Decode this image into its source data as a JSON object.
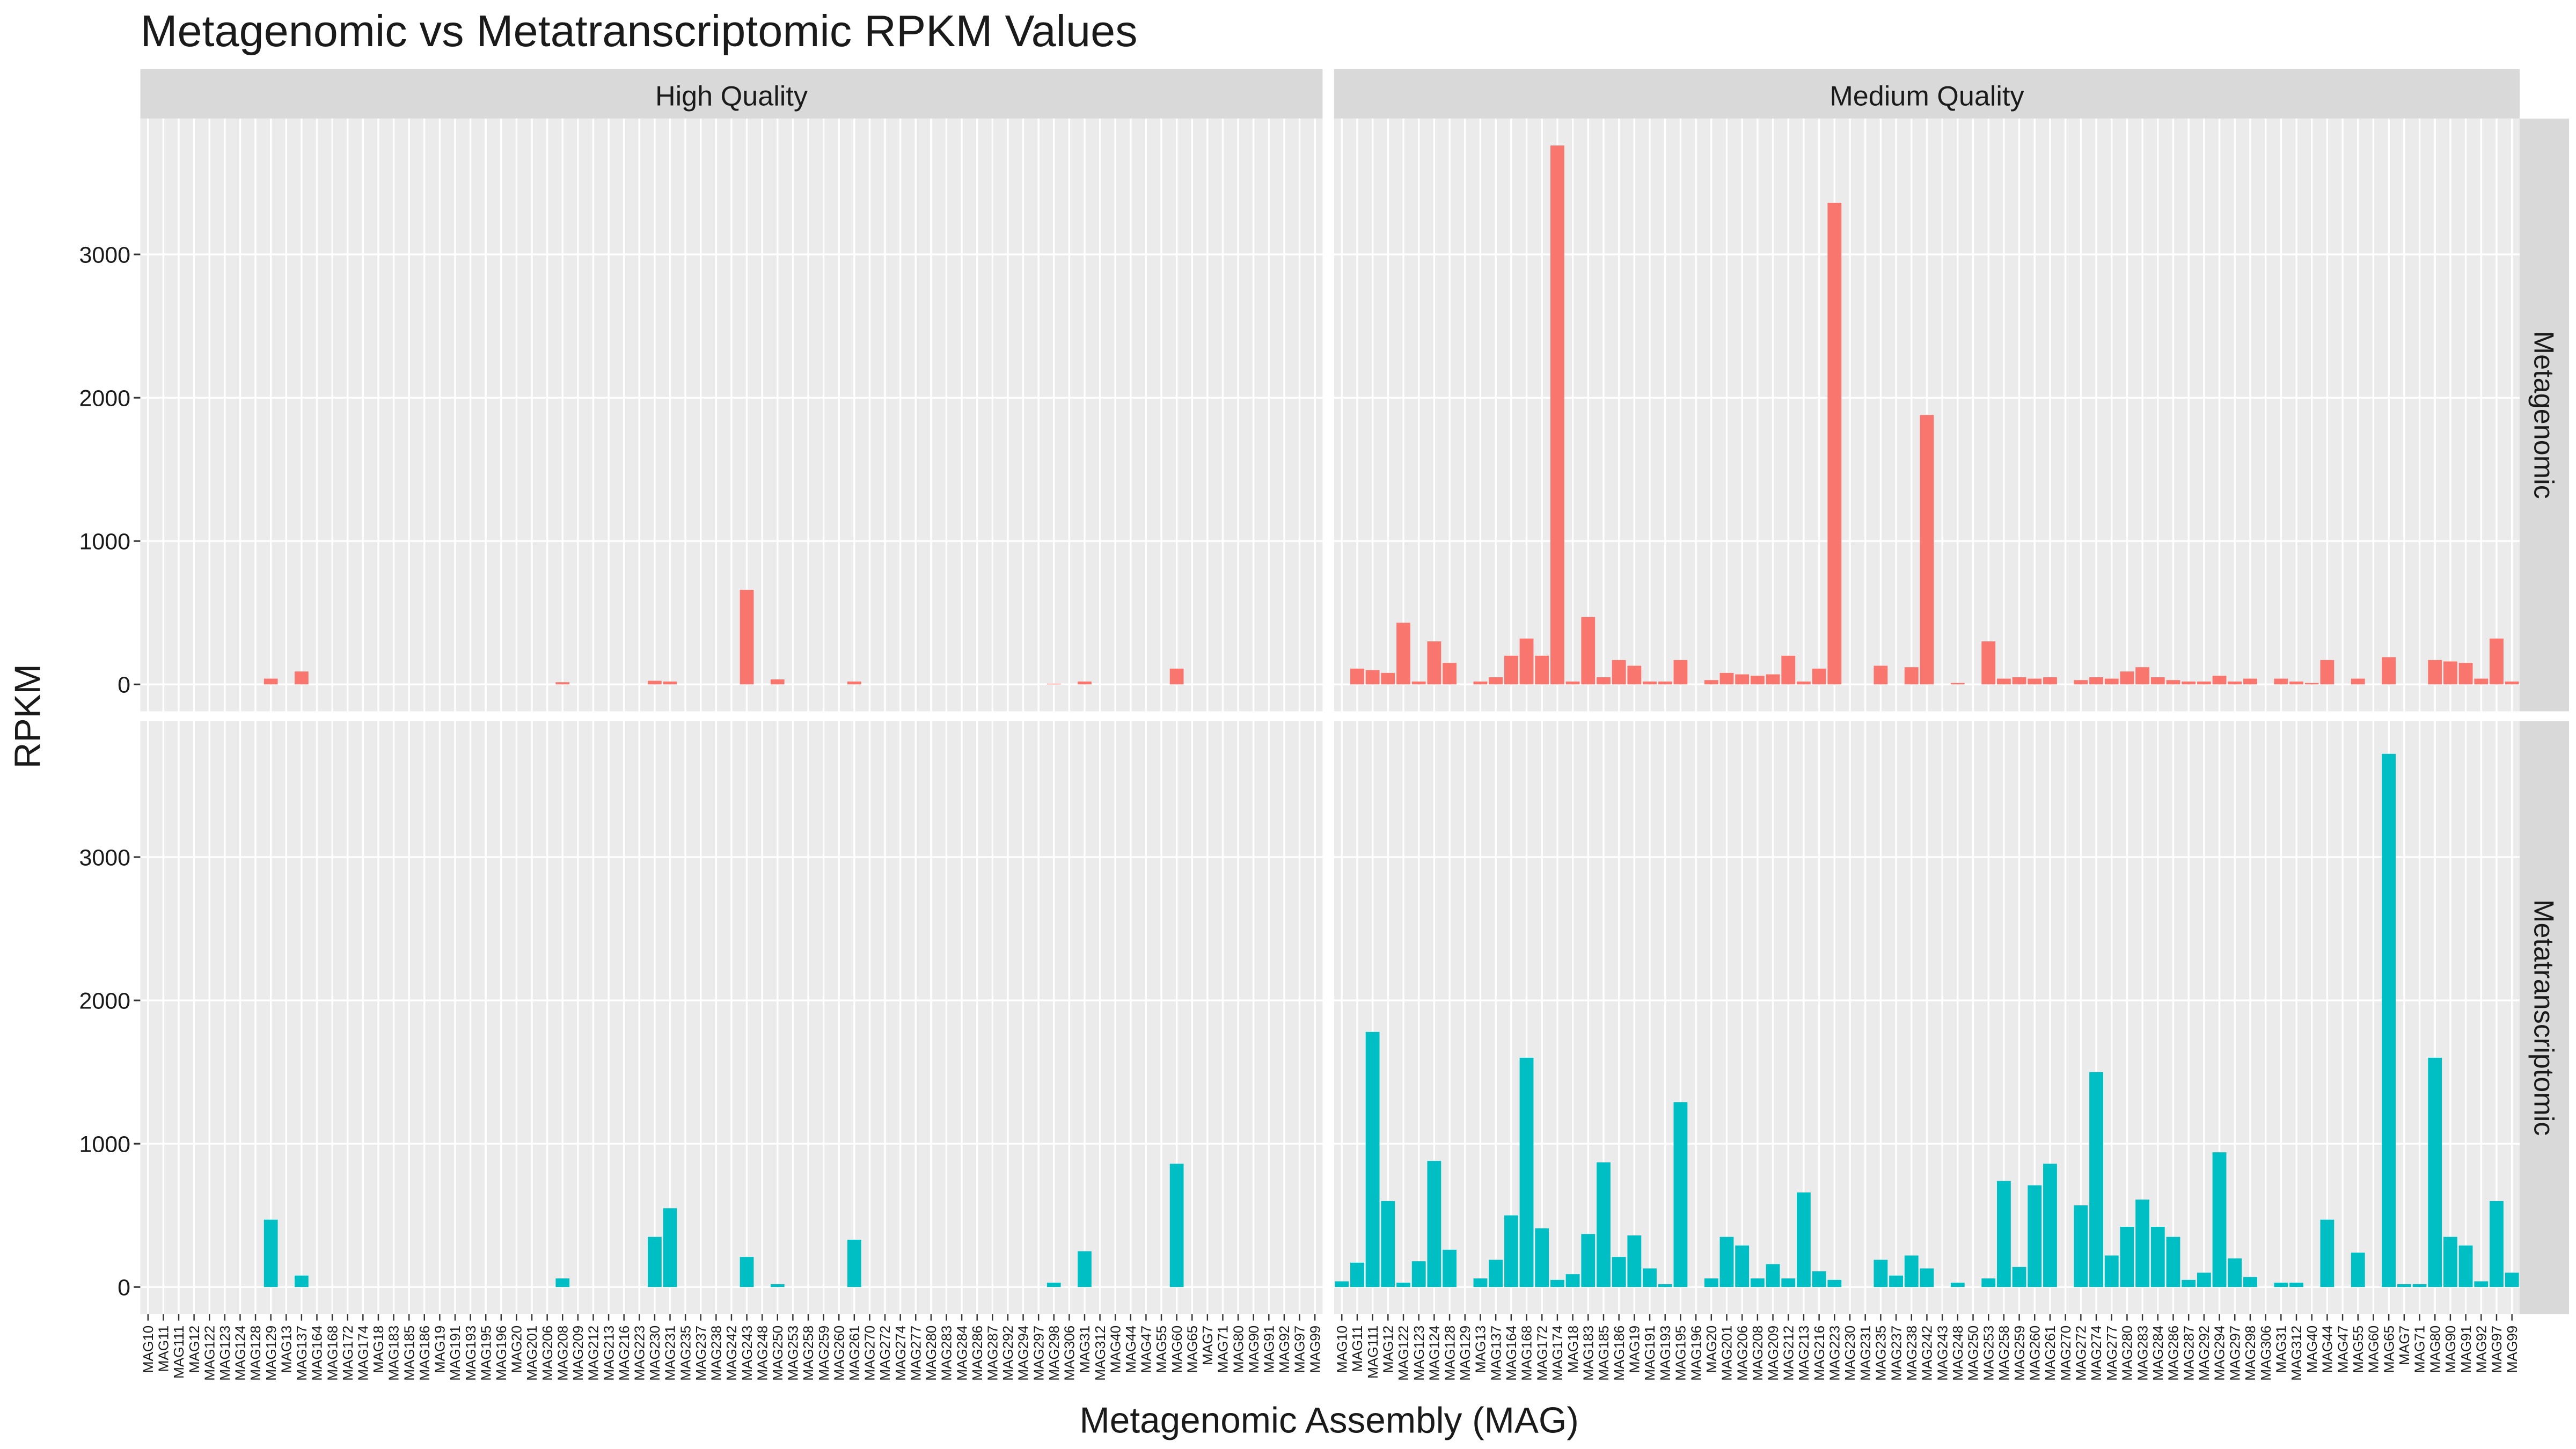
{
  "chart_data": {
    "type": "bar",
    "title": "Metagenomic vs Metatranscriptomic RPKM Values",
    "x_label": "Metagenomic Assembly (MAG)",
    "y_label": "RPKM",
    "categories": [
      "MAG10",
      "MAG11",
      "MAG111",
      "MAG12",
      "MAG122",
      "MAG123",
      "MAG124",
      "MAG128",
      "MAG129",
      "MAG13",
      "MAG137",
      "MAG164",
      "MAG168",
      "MAG172",
      "MAG174",
      "MAG18",
      "MAG183",
      "MAG185",
      "MAG186",
      "MAG19",
      "MAG191",
      "MAG193",
      "MAG195",
      "MAG196",
      "MAG20",
      "MAG201",
      "MAG206",
      "MAG208",
      "MAG209",
      "MAG212",
      "MAG213",
      "MAG216",
      "MAG223",
      "MAG230",
      "MAG231",
      "MAG235",
      "MAG237",
      "MAG238",
      "MAG242",
      "MAG243",
      "MAG248",
      "MAG250",
      "MAG253",
      "MAG258",
      "MAG259",
      "MAG260",
      "MAG261",
      "MAG270",
      "MAG272",
      "MAG274",
      "MAG277",
      "MAG280",
      "MAG283",
      "MAG284",
      "MAG286",
      "MAG287",
      "MAG292",
      "MAG294",
      "MAG297",
      "MAG298",
      "MAG306",
      "MAG31",
      "MAG312",
      "MAG40",
      "MAG44",
      "MAG47",
      "MAG55",
      "MAG60",
      "MAG65",
      "MAG7",
      "MAG71",
      "MAG80",
      "MAG90",
      "MAG91",
      "MAG92",
      "MAG97",
      "MAG99"
    ],
    "facet_columns": [
      "High Quality",
      "Medium Quality"
    ],
    "series": [
      {
        "name": "Metagenomic",
        "color": "#F8766D",
        "values": [
          [
            0,
            0,
            0,
            0,
            0,
            0,
            0,
            0,
            40,
            0,
            90,
            0,
            0,
            0,
            0,
            0,
            0,
            0,
            0,
            0,
            0,
            0,
            0,
            0,
            0,
            0,
            0,
            15,
            0,
            0,
            0,
            0,
            0,
            25,
            20,
            0,
            0,
            0,
            0,
            660,
            0,
            35,
            0,
            0,
            0,
            0,
            20,
            0,
            0,
            0,
            0,
            0,
            0,
            0,
            0,
            0,
            0,
            0,
            0,
            5,
            0,
            20,
            0,
            0,
            0,
            0,
            0,
            110,
            0,
            0,
            0,
            0,
            0,
            0,
            0,
            0,
            0
          ],
          [
            0,
            110,
            100,
            80,
            430,
            20,
            300,
            150,
            0,
            20,
            50,
            200,
            320,
            200,
            3760,
            20,
            470,
            50,
            170,
            130,
            20,
            20,
            170,
            0,
            30,
            80,
            70,
            60,
            70,
            200,
            20,
            110,
            3360,
            0,
            0,
            130,
            0,
            120,
            1880,
            0,
            10,
            0,
            300,
            40,
            50,
            40,
            50,
            0,
            30,
            50,
            40,
            90,
            120,
            50,
            30,
            20,
            20,
            60,
            20,
            40,
            0,
            40,
            20,
            10,
            170,
            0,
            40,
            0,
            190,
            0,
            0,
            170,
            160,
            150,
            40,
            320,
            20
          ]
        ]
      },
      {
        "name": "Metatranscriptomic",
        "color": "#00BFC4",
        "values": [
          [
            0,
            0,
            0,
            0,
            0,
            0,
            0,
            0,
            470,
            0,
            80,
            0,
            0,
            0,
            0,
            0,
            0,
            0,
            0,
            0,
            0,
            0,
            0,
            0,
            0,
            0,
            0,
            60,
            0,
            0,
            0,
            0,
            0,
            350,
            550,
            0,
            0,
            0,
            0,
            210,
            0,
            20,
            0,
            0,
            0,
            0,
            330,
            0,
            0,
            0,
            0,
            0,
            0,
            0,
            0,
            0,
            0,
            0,
            0,
            30,
            0,
            250,
            0,
            0,
            0,
            0,
            0,
            860,
            0,
            0,
            0,
            0,
            0,
            0,
            0,
            0,
            0
          ],
          [
            40,
            170,
            1780,
            600,
            30,
            180,
            880,
            260,
            0,
            60,
            190,
            500,
            1600,
            410,
            50,
            90,
            370,
            870,
            210,
            360,
            130,
            20,
            1290,
            0,
            60,
            350,
            290,
            60,
            160,
            60,
            660,
            110,
            50,
            0,
            0,
            190,
            80,
            220,
            130,
            0,
            30,
            0,
            60,
            740,
            140,
            710,
            860,
            0,
            570,
            1500,
            220,
            420,
            610,
            420,
            350,
            50,
            100,
            940,
            200,
            70,
            0,
            30,
            30,
            0,
            470,
            0,
            240,
            0,
            3720,
            20,
            20,
            1600,
            350,
            290,
            40,
            600,
            100
          ]
        ]
      }
    ],
    "ylim": [
      -188,
      3948
    ],
    "yticks": [
      0,
      1000,
      2000,
      3000
    ],
    "grid": true
  }
}
